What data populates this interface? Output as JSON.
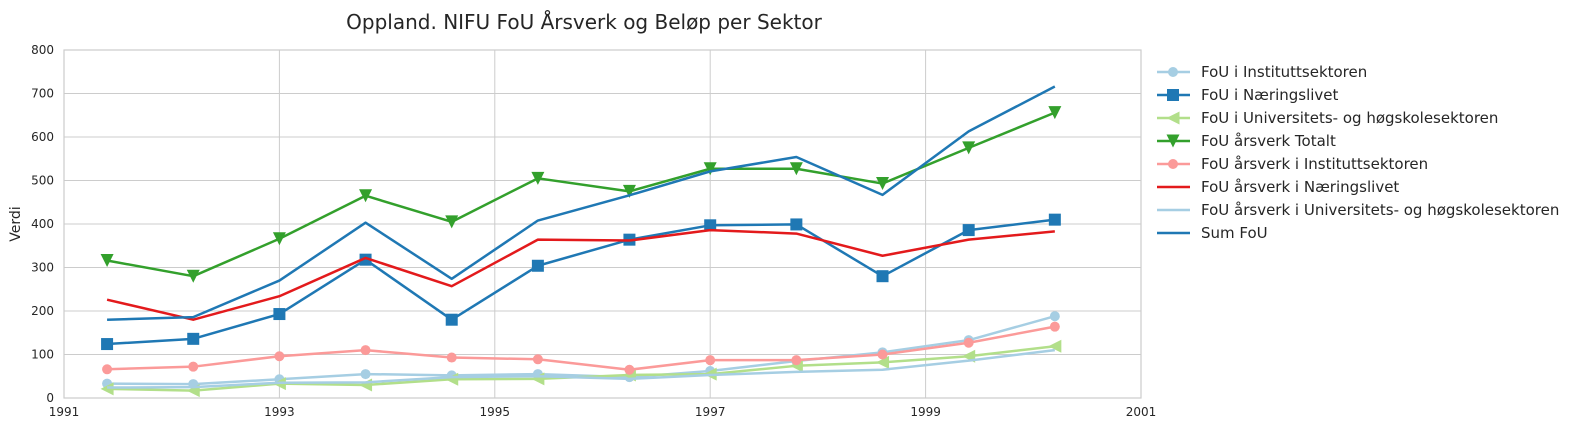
{
  "chart_data": {
    "type": "line",
    "title": "Oppland. NIFU FoU Årsverk og Beløp per Sektor",
    "xlabel": "",
    "ylabel": "Verdi",
    "xlim": [
      1991,
      2001
    ],
    "ylim": [
      0,
      800
    ],
    "xticks": [
      "1991",
      "1993",
      "1995",
      "1997",
      "1999",
      "2001"
    ],
    "yticks": [
      "0",
      "100",
      "200",
      "300",
      "400",
      "500",
      "600",
      "700",
      "800"
    ],
    "grid": true,
    "legend_position": "outside-right",
    "x": [
      1991.4,
      1992.2,
      1993.0,
      1993.8,
      1994.6,
      1995.4,
      1996.25,
      1997.0,
      1997.8,
      1998.6,
      1999.4,
      2000.2
    ],
    "series": [
      {
        "name": "FoU i Instituttsektoren",
        "color": "#a6cee3",
        "marker": "circle",
        "values": [
          33,
          32,
          43,
          55,
          52,
          55,
          48,
          62,
          85,
          105,
          133,
          188
        ]
      },
      {
        "name": "FoU i Næringslivet",
        "color": "#1f78b4",
        "marker": "square",
        "values": [
          124,
          136,
          193,
          318,
          180,
          304,
          364,
          397,
          399,
          280,
          386,
          410
        ]
      },
      {
        "name": "FoU i Universitets- og høgskolesektoren",
        "color": "#b2df8a",
        "marker": "triangle-left",
        "values": [
          21,
          17,
          33,
          30,
          43,
          44,
          53,
          55,
          74,
          82,
          96,
          119
        ]
      },
      {
        "name": "FoU årsverk Totalt",
        "color": "#33a02c",
        "marker": "triangle-down",
        "values": [
          316,
          280,
          366,
          465,
          405,
          505,
          475,
          527,
          527,
          493,
          575,
          656
        ]
      },
      {
        "name": "FoU årsverk i Instituttsektoren",
        "color": "#fb9a99",
        "marker": "circle",
        "values": [
          66,
          72,
          96,
          110,
          93,
          89,
          65,
          87,
          87,
          100,
          127,
          164
        ]
      },
      {
        "name": "FoU årsverk i Næringslivet",
        "color": "#e31a1c",
        "marker": "none",
        "values": [
          226,
          180,
          234,
          322,
          257,
          364,
          362,
          386,
          378,
          327,
          364,
          383
        ]
      },
      {
        "name": "FoU årsverk i Universitets- og høgskolesektoren",
        "color": "#a6cee3",
        "marker": "none",
        "values": [
          24,
          25,
          35,
          36,
          48,
          50,
          44,
          53,
          60,
          65,
          86,
          110
        ]
      },
      {
        "name": "Sum FoU",
        "color": "#1f78b4",
        "marker": "none",
        "values": [
          180,
          186,
          270,
          403,
          274,
          408,
          466,
          521,
          554,
          467,
          613,
          716
        ]
      }
    ]
  }
}
